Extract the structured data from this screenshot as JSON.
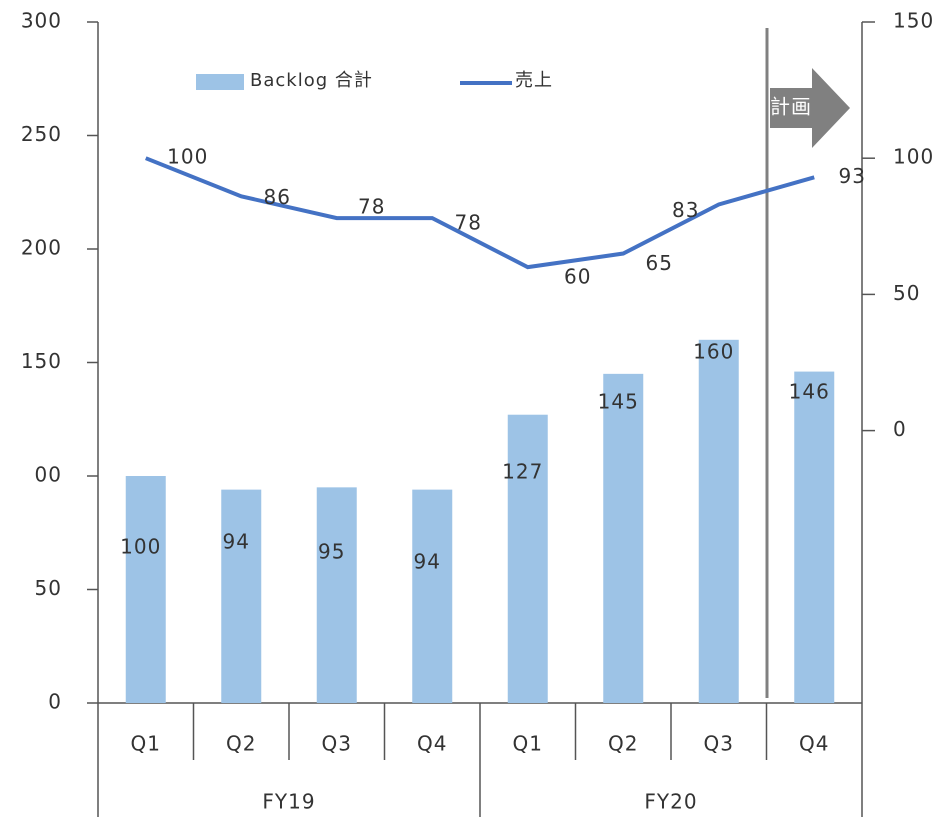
{
  "chart_data": {
    "type": "combo",
    "categories": [
      "Q1",
      "Q2",
      "Q3",
      "Q4",
      "Q1",
      "Q2",
      "Q3",
      "Q4"
    ],
    "groups": [
      "FY19",
      "FY20"
    ],
    "series": [
      {
        "name": "Backlog 合計",
        "type": "bar",
        "color": "#9dc3e6",
        "values": [
          100,
          94,
          95,
          94,
          127,
          145,
          160,
          146
        ]
      },
      {
        "name": "売上",
        "type": "line",
        "color": "#4472c4",
        "axis": "y2",
        "values": [
          100,
          86,
          78,
          78,
          60,
          65,
          83,
          93
        ]
      }
    ],
    "ylim": [
      0,
      300
    ],
    "yticks": [
      0,
      50,
      {
        "value": 100,
        "label": "00"
      },
      150,
      200,
      250,
      300
    ],
    "y2lim": [
      -100,
      150
    ],
    "y2ticks": [
      0,
      50,
      100,
      150
    ],
    "annotation": "計画"
  }
}
